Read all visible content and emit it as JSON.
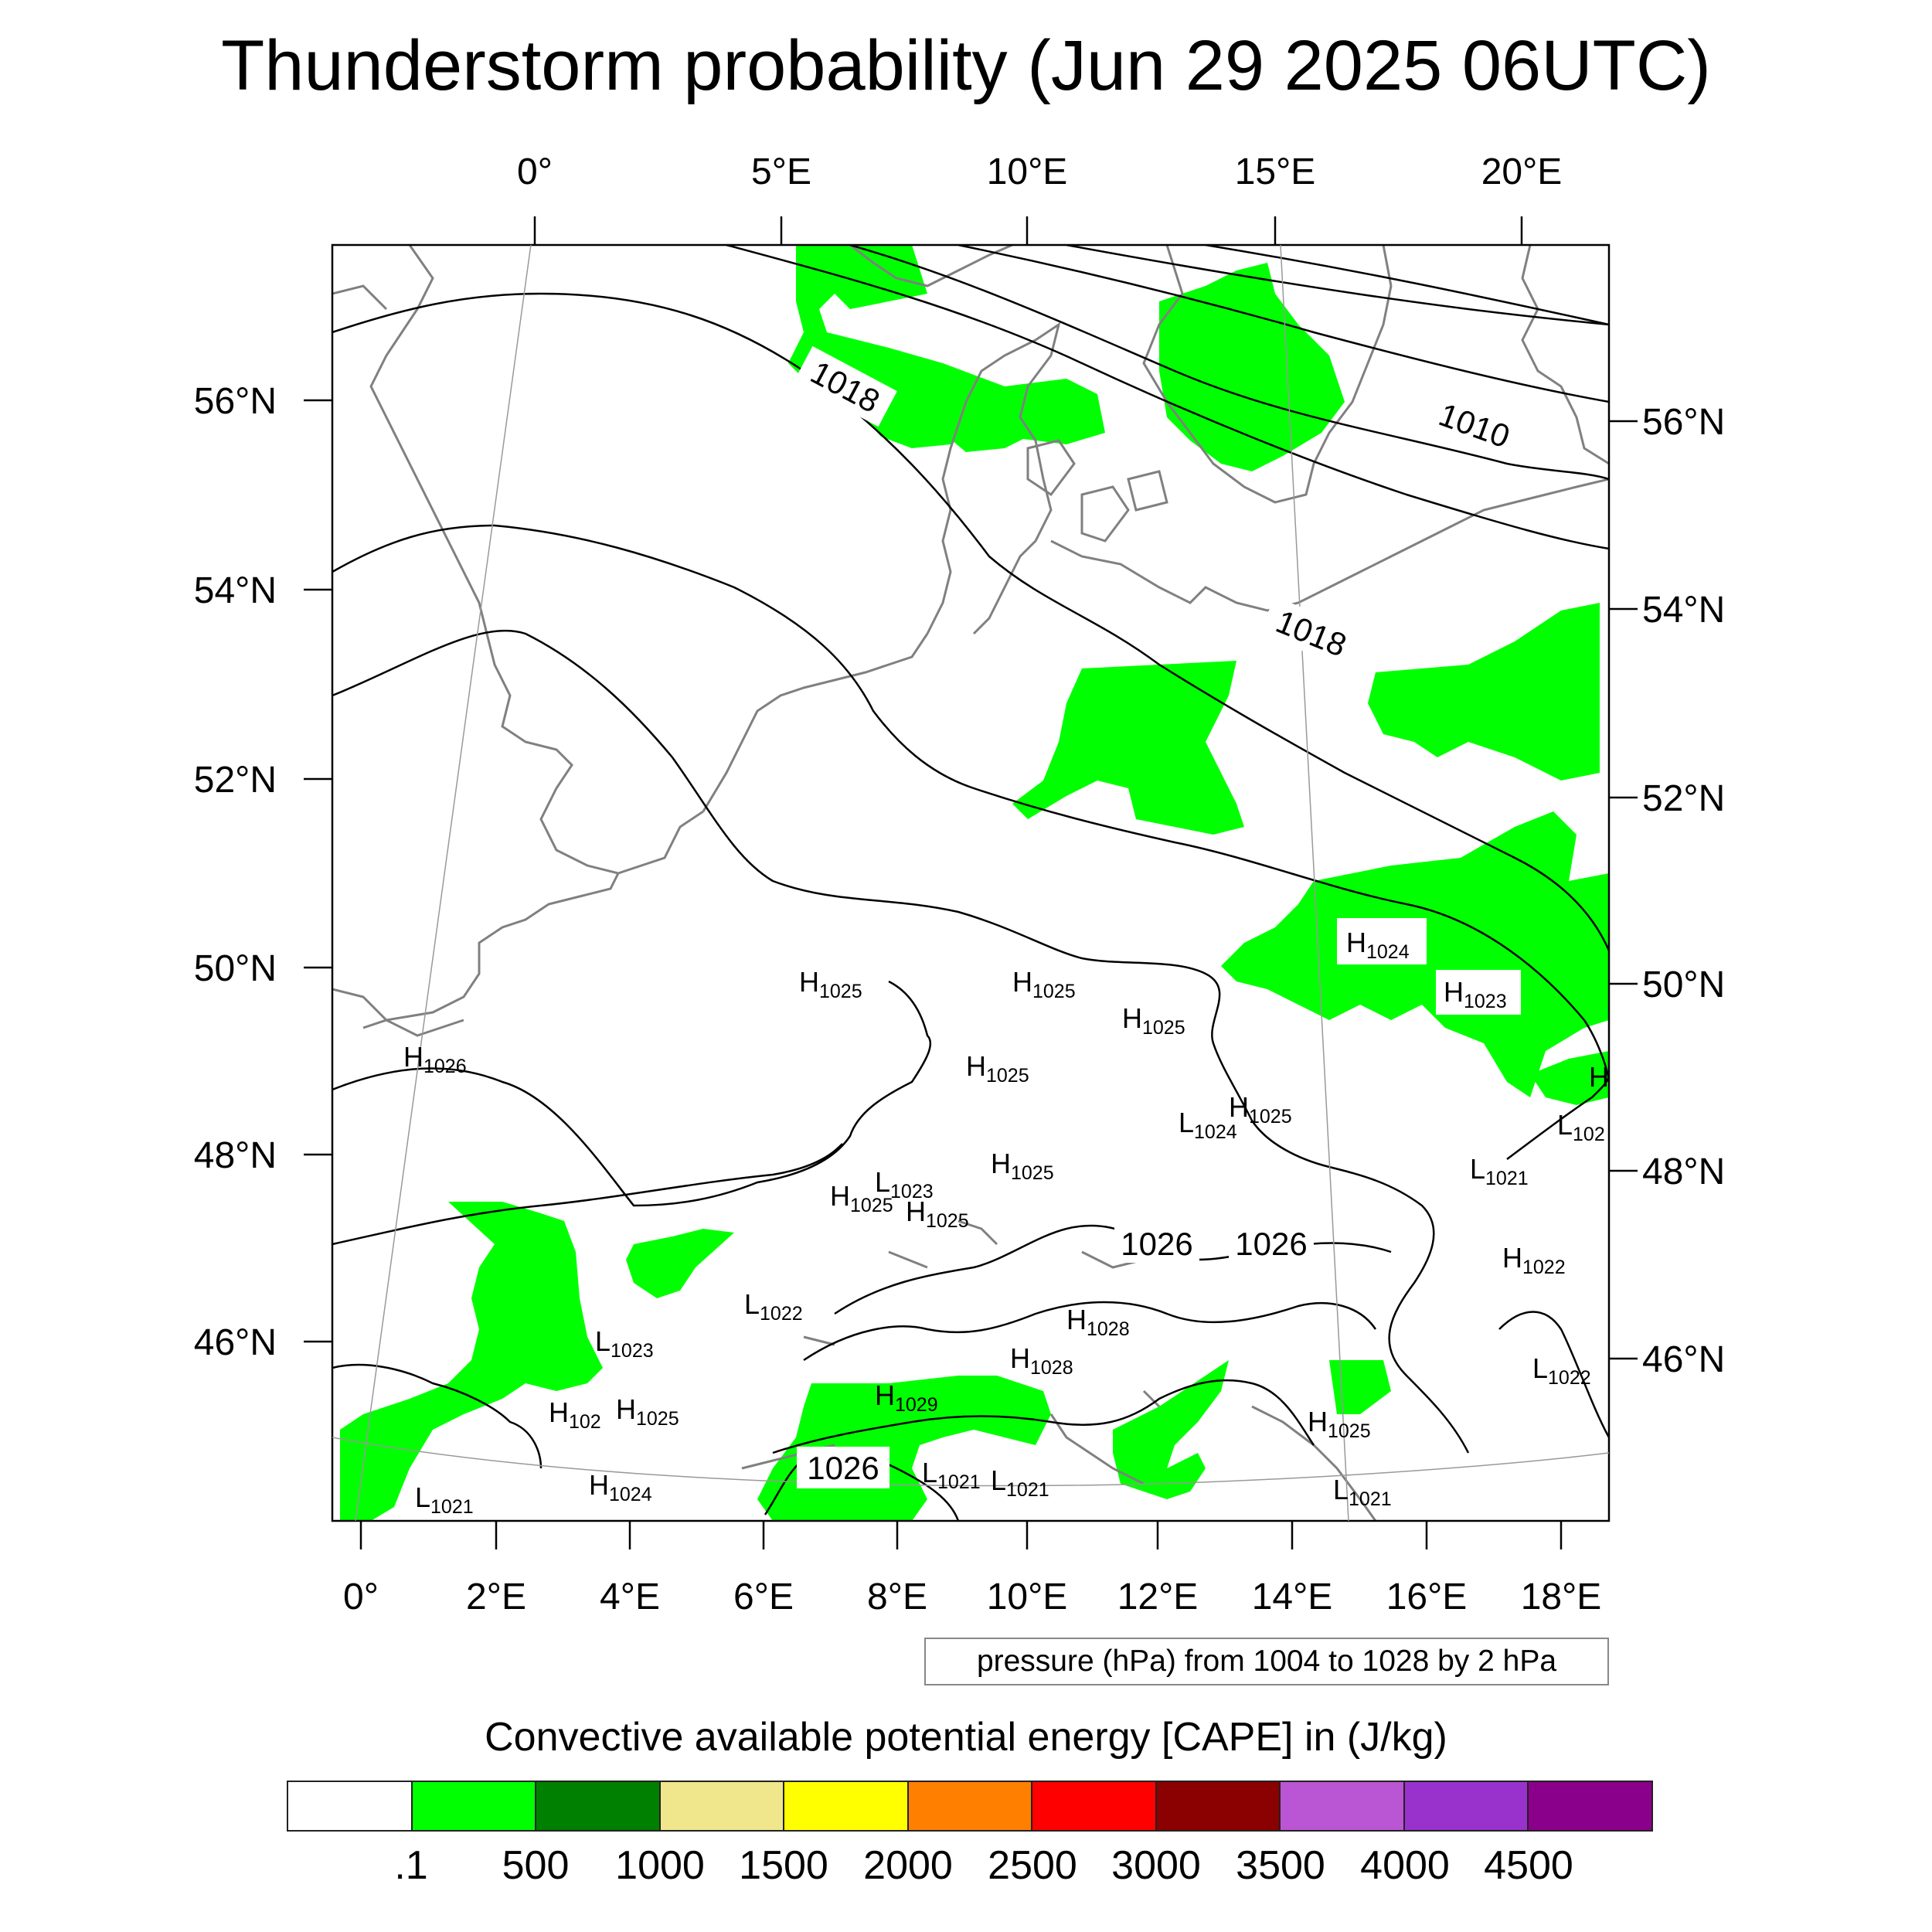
{
  "title": "Thunderstorm probability (Jun 29 2025 06UTC)",
  "top_lon_labels": [
    "0°",
    "5°E",
    "10°E",
    "15°E",
    "20°E"
  ],
  "bottom_lon_labels": [
    "0°",
    "2°E",
    "4°E",
    "6°E",
    "8°E",
    "10°E",
    "12°E",
    "14°E",
    "16°E",
    "18°E"
  ],
  "left_lat_labels": [
    "56°N",
    "54°N",
    "52°N",
    "50°N",
    "48°N",
    "46°N"
  ],
  "right_lat_labels": [
    "56°N",
    "54°N",
    "52°N",
    "50°N",
    "48°N",
    "46°N"
  ],
  "isobar_labels": [
    "1018",
    "1010",
    "1018",
    "1026",
    "1026",
    "1026"
  ],
  "pressure_systems": [
    {
      "type": "H",
      "value": "1024"
    },
    {
      "type": "H",
      "value": "1023"
    },
    {
      "type": "H",
      "value": "1025"
    },
    {
      "type": "H",
      "value": "1025"
    },
    {
      "type": "H",
      "value": "1025"
    },
    {
      "type": "H",
      "value": "1026"
    },
    {
      "type": "H",
      "value": "1025"
    },
    {
      "type": "L",
      "value": "1024"
    },
    {
      "type": "H",
      "value": "1025"
    },
    {
      "type": "H",
      "value": "1025"
    },
    {
      "type": "L",
      "value": "1023"
    },
    {
      "type": "H",
      "value": "1025"
    },
    {
      "type": "H",
      "value": "1025"
    },
    {
      "type": "L",
      "value": "1021"
    },
    {
      "type": "H",
      "value": "1022"
    },
    {
      "type": "L",
      "value": "1022"
    },
    {
      "type": "H",
      "value": "1028"
    },
    {
      "type": "H",
      "value": "1028"
    },
    {
      "type": "H",
      "value": "1029"
    },
    {
      "type": "L",
      "value": "1023"
    },
    {
      "type": "H",
      "value": "102"
    },
    {
      "type": "H",
      "value": "1025"
    },
    {
      "type": "L",
      "value": "1022"
    },
    {
      "type": "H",
      "value": "1025"
    },
    {
      "type": "H",
      "value": "1024"
    },
    {
      "type": "L",
      "value": "1021"
    },
    {
      "type": "L",
      "value": "1021"
    },
    {
      "type": "L",
      "value": "1021"
    },
    {
      "type": "L",
      "value": "1021"
    },
    {
      "type": "L",
      "value": "102"
    },
    {
      "type": "H",
      "value": ""
    }
  ],
  "pressure_note": "pressure (hPa) from 1004 to 1028 by 2 hPa",
  "colorbar": {
    "title": "Convective available potential energy [CAPE] in (J/kg)",
    "colors": [
      "#ffffff",
      "#00ff00",
      "#008000",
      "#f0e68c",
      "#ffff00",
      "#ff8000",
      "#ff0000",
      "#8b0000",
      "#ba55d3",
      "#9932cc",
      "#8b008b"
    ],
    "tick_labels": [
      ".1",
      "500",
      "1000",
      "1500",
      "2000",
      "2500",
      "3000",
      "3500",
      "4000",
      "4500"
    ]
  },
  "map_colors": {
    "cape_fill": "#00ff00",
    "coastline": "#808080",
    "isobar": "#000000"
  }
}
